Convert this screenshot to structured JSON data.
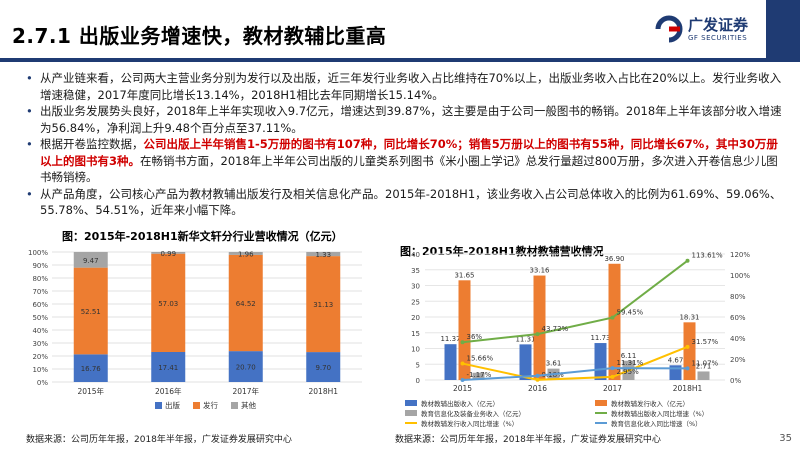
{
  "header": {
    "title": "2.7.1 出版业务增速快，教材教辅比重高",
    "logo_cn": "广发证券",
    "logo_en": "GF SECURITIES"
  },
  "bullets": [
    {
      "parts": [
        {
          "t": "从产业链来看，公司两大主营业务分别为发行以及出版，近三年发行业务收入占比维持在70%以上，出版业务收入占比在20%以上。发行业务收入增速稳健，2017年度同比增长13.14%，2018H1相比去年同期增长15.14%。"
        }
      ]
    },
    {
      "parts": [
        {
          "t": "出版业务发展势头良好，2018年上半年实现收入9.7亿元，增速达到39.87%，这主要是由于公司一般图书的畅销。2018年上半年该部分收入增速为56.84%，净利润上升9.48个百分点至37.11%。"
        }
      ]
    },
    {
      "parts": [
        {
          "t": "根据开卷监控数据，"
        },
        {
          "t": "公司出版上半年销售1-5万册的图书有107种，同比增长70%；销售5万册以上的图书有55种，同比增长67%，其中30万册以上的图书有3种。",
          "red": true
        },
        {
          "t": "在畅销书方面，2018年上半年公司出版的儿童类系列图书《米小圈上学记》总发行量超过800万册，多次进入开卷信息少儿图书畅销榜。"
        }
      ]
    },
    {
      "parts": [
        {
          "t": "从产品角度，公司核心产品为教材教辅出版发行及相关信息化产品。2015年-2018H1，该业务收入占公司总体收入的比例为61.69%、59.06%、55.78%、54.51%，近年来小幅下降。"
        }
      ]
    }
  ],
  "figure_left_title": "图：2015年-2018H1新华文轩分行业营收情况（亿元）",
  "figure_right_title": "图：2015年-2018H1教材教辅营收情况",
  "source_left": "数据来源：公司历年年报，2018年半年报，广发证券发展研究中心",
  "source_right": "数据来源：公司历年年报，2018年半年报，广发证券发展研究中心",
  "page_number": "35",
  "colors": {
    "navy": "#1f3b73",
    "publish": "#4472c4",
    "distribute": "#ed7d31",
    "other": "#a5a5a5",
    "red": "#d00000"
  },
  "chart_data": [
    {
      "type": "bar",
      "stacked": "percent",
      "categories": [
        "2015年",
        "2016年",
        "2017年",
        "2018H1"
      ],
      "series": [
        {
          "name": "出版",
          "values": [
            16.76,
            17.41,
            20.7,
            9.7
          ],
          "color": "#4472c4"
        },
        {
          "name": "发行",
          "values": [
            52.51,
            57.03,
            64.52,
            31.13
          ],
          "color": "#ed7d31"
        },
        {
          "name": "其他",
          "values": [
            9.47,
            0.99,
            1.96,
            1.33
          ],
          "color": "#a5a5a5"
        }
      ],
      "y_ticks": [
        "0%",
        "10%",
        "20%",
        "30%",
        "40%",
        "50%",
        "60%",
        "70%",
        "80%",
        "90%",
        "100%"
      ],
      "ylim": [
        0,
        100
      ],
      "legend_position": "bottom"
    },
    {
      "type": "bar",
      "categories": [
        "2015",
        "2016",
        "2017",
        "2018H1"
      ],
      "bars": [
        {
          "name": "教材教辅出版收入（亿元）",
          "values": [
            11.37,
            11.31,
            11.73,
            4.67
          ],
          "color": "#4472c4"
        },
        {
          "name": "教材教辅发行收入（亿元）",
          "values": [
            31.65,
            33.16,
            36.9,
            18.31
          ],
          "color": "#ed7d31"
        },
        {
          "name": "教育信息化及装备业务收入（亿元）",
          "values": [
            2.3,
            3.61,
            6.11,
            2.71
          ],
          "color": "#a5a5a5"
        }
      ],
      "lines": [
        {
          "name": "教材教辅出版收入同比增速（%）",
          "values": [
            36.0,
            43.72,
            59.45,
            113.61
          ],
          "color": "#70ad47"
        },
        {
          "name": "教材教辅发行收入同比增速（%）",
          "values": [
            15.66,
            0.18,
            2.95,
            31.57
          ],
          "color": "#ffc000"
        },
        {
          "name": "教育信息化收入同比增速（%）",
          "values": [
            -1.17,
            4.0,
            11.31,
            11.07
          ],
          "color": "#5b9bd5"
        }
      ],
      "point_labels": {
        "bars": [
          [
            "11.37",
            "11.31",
            "11.73",
            "4.67"
          ],
          [
            "31.65",
            "33.16",
            "36.90",
            "18.31"
          ],
          [
            "",
            "3.61",
            "6.11",
            "2.71"
          ]
        ],
        "lines": [
          [
            "36%",
            "43.72%",
            "59.45%",
            "113.61%"
          ],
          [
            "15.66%",
            "0.18%",
            "2.95%",
            "31.57%"
          ],
          [
            "-1.17%",
            "",
            "11.31%",
            "11.07%"
          ]
        ]
      },
      "y_left_ticks": [
        "0",
        "5",
        "10",
        "15",
        "20",
        "25",
        "30",
        "35",
        "40"
      ],
      "y_right_ticks": [
        "0%",
        "20%",
        "40%",
        "60%",
        "80%",
        "100%",
        "120%"
      ],
      "ylim_left": [
        0,
        40
      ],
      "ylim_right": [
        0,
        120
      ],
      "legend_position": "bottom"
    }
  ]
}
